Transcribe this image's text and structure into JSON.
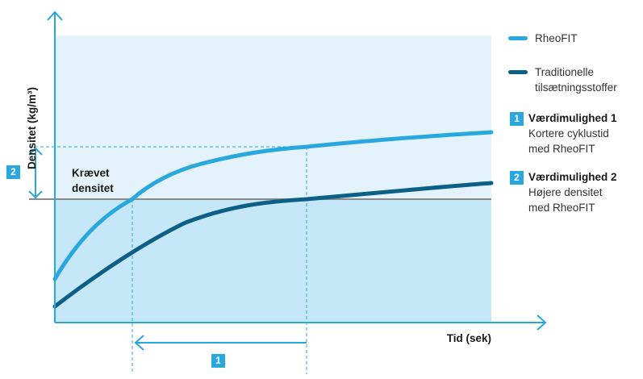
{
  "chart_data": {
    "type": "line",
    "ylabel": "Densitet (kg/m³)",
    "xlabel": "Tid (sek)",
    "required_density_label": [
      "Krævet",
      "densitet"
    ],
    "series": [
      {
        "name": "RheoFIT",
        "color": "#29a8e0"
      },
      {
        "name": "Traditionelle tilsætningsstoffer",
        "color": "#0c5f87"
      }
    ],
    "annotations": [
      {
        "marker": "1",
        "title": "Værdimulighed 1",
        "lines": [
          "Kortere cyklustid",
          "med RheoFIT"
        ]
      },
      {
        "marker": "2",
        "title": "Værdimulighed 2",
        "lines": [
          "Højere densitet",
          "med RheoFIT"
        ]
      }
    ]
  },
  "legend": {
    "rheofit": "RheoFIT",
    "traditional": [
      "Traditionelle",
      "tilsætningsstoffer"
    ]
  },
  "colors": {
    "light_blue": "#29a8e0",
    "dark_blue": "#0c5f87",
    "plot_background": "#e3f2fb",
    "lower_band": "#c6e7f8",
    "required_line": "#8a8a8a"
  }
}
